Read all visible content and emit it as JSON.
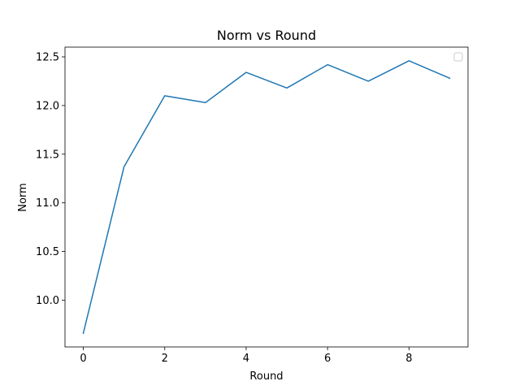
{
  "chart_data": {
    "type": "line",
    "title": "Norm vs Round",
    "xlabel": "Round",
    "ylabel": "Norm",
    "x": [
      0,
      1,
      2,
      3,
      4,
      5,
      6,
      7,
      8,
      9
    ],
    "series": [
      {
        "values": [
          9.66,
          11.37,
          12.1,
          12.03,
          12.34,
          12.18,
          12.42,
          12.25,
          12.46,
          12.28
        ],
        "color": "#1f77b4"
      }
    ],
    "xlim": [
      -0.45,
      9.45
    ],
    "ylim": [
      9.52,
      12.6
    ],
    "xticks": [
      0,
      2,
      4,
      6,
      8
    ],
    "xtick_labels": [
      "0",
      "2",
      "4",
      "6",
      "8"
    ],
    "yticks": [
      10.0,
      10.5,
      11.0,
      11.5,
      12.0,
      12.5
    ],
    "ytick_labels": [
      "10.0",
      "10.5",
      "11.0",
      "11.5",
      "12.0",
      "12.5"
    ],
    "grid": false,
    "legend": {
      "placement": "upper right",
      "entries": []
    }
  }
}
